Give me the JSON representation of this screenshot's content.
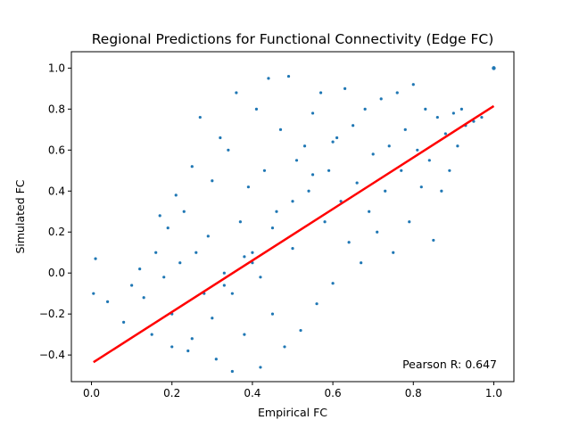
{
  "chart_data": {
    "type": "scatter",
    "title": "Regional Predictions for Functional Connectivity (Edge FC)",
    "xlabel": "Empirical FC",
    "ylabel": "Simulated FC",
    "xlim": [
      -0.05,
      1.05
    ],
    "ylim": [
      -0.53,
      1.08
    ],
    "x_ticks": [
      0.0,
      0.2,
      0.4,
      0.6,
      0.8,
      1.0
    ],
    "x_tick_labels": [
      "0.0",
      "0.2",
      "0.4",
      "0.6",
      "0.8",
      "1.0"
    ],
    "y_ticks": [
      -0.4,
      -0.2,
      0.0,
      0.2,
      0.4,
      0.6,
      0.8,
      1.0
    ],
    "y_tick_labels": [
      "−0.4",
      "−0.2",
      "0.0",
      "0.2",
      "0.4",
      "0.6",
      "0.8",
      "1.0"
    ],
    "grid": false,
    "annotation": "Pearson R: 0.647",
    "point_color": "#1f77b4",
    "fit_color": "#ff0000",
    "annotation_color": "#ff0000",
    "fit_line": {
      "x": [
        0.005,
        1.0
      ],
      "y": [
        -0.435,
        0.815
      ]
    },
    "identity_point": {
      "x": 1.0,
      "y": 1.0
    },
    "points": [
      [
        0.01,
        0.07
      ],
      [
        0.005,
        -0.1
      ],
      [
        0.04,
        -0.14
      ],
      [
        0.08,
        -0.24
      ],
      [
        0.1,
        -0.06
      ],
      [
        0.12,
        0.02
      ],
      [
        0.13,
        -0.12
      ],
      [
        0.15,
        -0.3
      ],
      [
        0.16,
        0.1
      ],
      [
        0.17,
        0.28
      ],
      [
        0.18,
        -0.02
      ],
      [
        0.19,
        0.22
      ],
      [
        0.2,
        -0.2
      ],
      [
        0.21,
        0.38
      ],
      [
        0.22,
        0.05
      ],
      [
        0.23,
        0.3
      ],
      [
        0.24,
        -0.38
      ],
      [
        0.25,
        0.52
      ],
      [
        0.26,
        0.1
      ],
      [
        0.27,
        0.76
      ],
      [
        0.28,
        -0.1
      ],
      [
        0.29,
        0.18
      ],
      [
        0.3,
        0.45
      ],
      [
        0.31,
        -0.42
      ],
      [
        0.32,
        0.66
      ],
      [
        0.33,
        0.0
      ],
      [
        0.34,
        0.6
      ],
      [
        0.35,
        -0.48
      ],
      [
        0.36,
        0.88
      ],
      [
        0.37,
        0.25
      ],
      [
        0.38,
        -0.3
      ],
      [
        0.39,
        0.42
      ],
      [
        0.4,
        0.1
      ],
      [
        0.41,
        0.8
      ],
      [
        0.42,
        -0.46
      ],
      [
        0.43,
        0.5
      ],
      [
        0.44,
        0.95
      ],
      [
        0.45,
        -0.2
      ],
      [
        0.46,
        0.3
      ],
      [
        0.47,
        0.7
      ],
      [
        0.48,
        -0.36
      ],
      [
        0.49,
        0.96
      ],
      [
        0.5,
        0.12
      ],
      [
        0.51,
        0.55
      ],
      [
        0.52,
        -0.28
      ],
      [
        0.53,
        0.62
      ],
      [
        0.54,
        0.4
      ],
      [
        0.55,
        0.78
      ],
      [
        0.56,
        -0.15
      ],
      [
        0.57,
        0.88
      ],
      [
        0.58,
        0.25
      ],
      [
        0.59,
        0.5
      ],
      [
        0.6,
        -0.05
      ],
      [
        0.61,
        0.66
      ],
      [
        0.62,
        0.35
      ],
      [
        0.63,
        0.9
      ],
      [
        0.64,
        0.15
      ],
      [
        0.65,
        0.72
      ],
      [
        0.66,
        0.44
      ],
      [
        0.67,
        0.05
      ],
      [
        0.68,
        0.8
      ],
      [
        0.69,
        0.3
      ],
      [
        0.7,
        0.58
      ],
      [
        0.71,
        0.2
      ],
      [
        0.72,
        0.85
      ],
      [
        0.73,
        0.4
      ],
      [
        0.74,
        0.62
      ],
      [
        0.75,
        0.1
      ],
      [
        0.76,
        0.88
      ],
      [
        0.77,
        0.5
      ],
      [
        0.78,
        0.7
      ],
      [
        0.79,
        0.25
      ],
      [
        0.8,
        0.92
      ],
      [
        0.81,
        0.6
      ],
      [
        0.82,
        0.42
      ],
      [
        0.83,
        0.8
      ],
      [
        0.84,
        0.55
      ],
      [
        0.85,
        0.16
      ],
      [
        0.86,
        0.76
      ],
      [
        0.87,
        0.4
      ],
      [
        0.88,
        0.68
      ],
      [
        0.89,
        0.5
      ],
      [
        0.9,
        0.78
      ],
      [
        0.91,
        0.62
      ],
      [
        0.92,
        0.8
      ],
      [
        0.93,
        0.72
      ],
      [
        0.95,
        0.74
      ],
      [
        0.97,
        0.76
      ],
      [
        0.6,
        0.64
      ],
      [
        0.55,
        0.48
      ],
      [
        0.5,
        0.35
      ],
      [
        0.45,
        0.22
      ],
      [
        0.4,
        0.05
      ],
      [
        0.35,
        -0.1
      ],
      [
        0.3,
        -0.22
      ],
      [
        0.25,
        -0.32
      ],
      [
        0.2,
        -0.36
      ],
      [
        0.42,
        -0.02
      ],
      [
        0.38,
        0.08
      ],
      [
        0.33,
        -0.06
      ]
    ]
  }
}
